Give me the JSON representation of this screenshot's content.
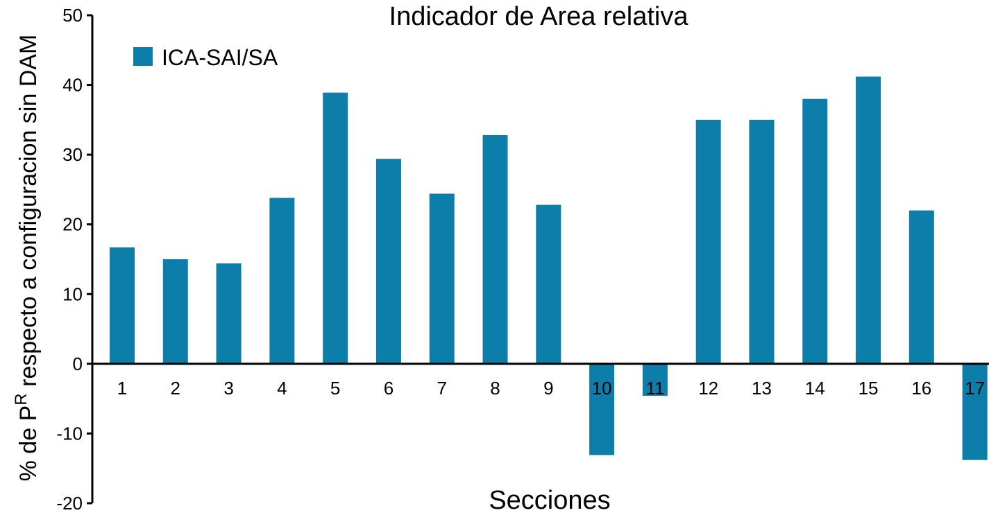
{
  "chart_data": {
    "type": "bar",
    "title": "Indicador de Area relativa",
    "xlabel": "Secciones",
    "ylabel_prefix": "% de P",
    "ylabel_superscript": "R",
    "ylabel_suffix": " respecto a configuracion sin DAM",
    "ylim": [
      -20,
      50
    ],
    "yticks": [
      -20,
      -10,
      0,
      10,
      20,
      30,
      40,
      50
    ],
    "categories": [
      "1",
      "2",
      "3",
      "4",
      "5",
      "6",
      "7",
      "8",
      "9",
      "10",
      "11",
      "12",
      "13",
      "14",
      "15",
      "16",
      "17"
    ],
    "series": [
      {
        "name": "ICA-SAI/SA",
        "color": "#0d7eaa",
        "values": [
          16.7,
          15.0,
          14.4,
          23.8,
          38.9,
          29.4,
          24.4,
          32.8,
          22.8,
          -13.1,
          -4.6,
          35.0,
          35.0,
          38.0,
          41.2,
          22.0,
          -13.8
        ]
      }
    ],
    "legend": "top-left",
    "grid": false
  }
}
